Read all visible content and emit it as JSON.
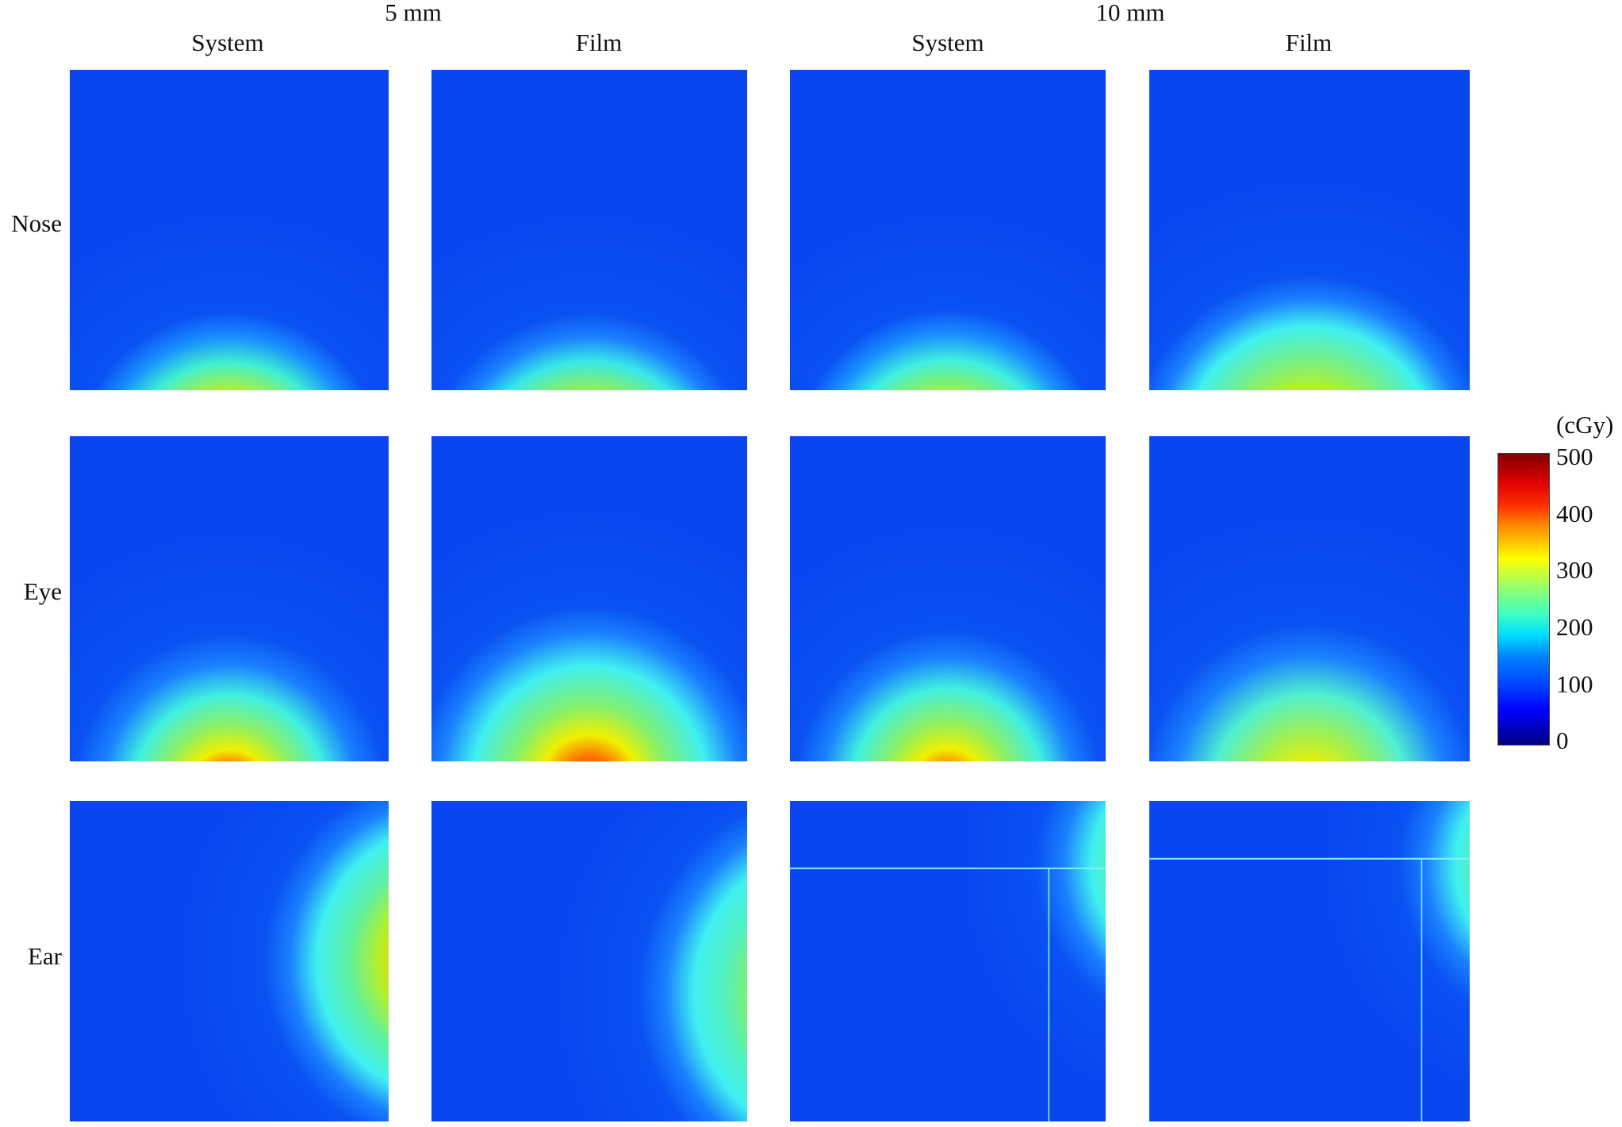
{
  "header": {
    "group_5mm": "5 mm",
    "group_10mm": "10 mm",
    "columns": [
      "System",
      "Film",
      "System",
      "Film"
    ]
  },
  "rows": [
    "Nose",
    "Eye",
    "Ear"
  ],
  "colorbar": {
    "unit": "(cGy)",
    "ticks": [
      "500",
      "400",
      "300",
      "200",
      "100",
      "0"
    ],
    "min": 0,
    "max": 500,
    "colormap": "jet"
  },
  "colors": {
    "background_blue": "#0a46f0",
    "cyan": "#3cf0f0",
    "green": "#7cf060",
    "yellow": "#f0f000",
    "red": "#e80000"
  }
}
